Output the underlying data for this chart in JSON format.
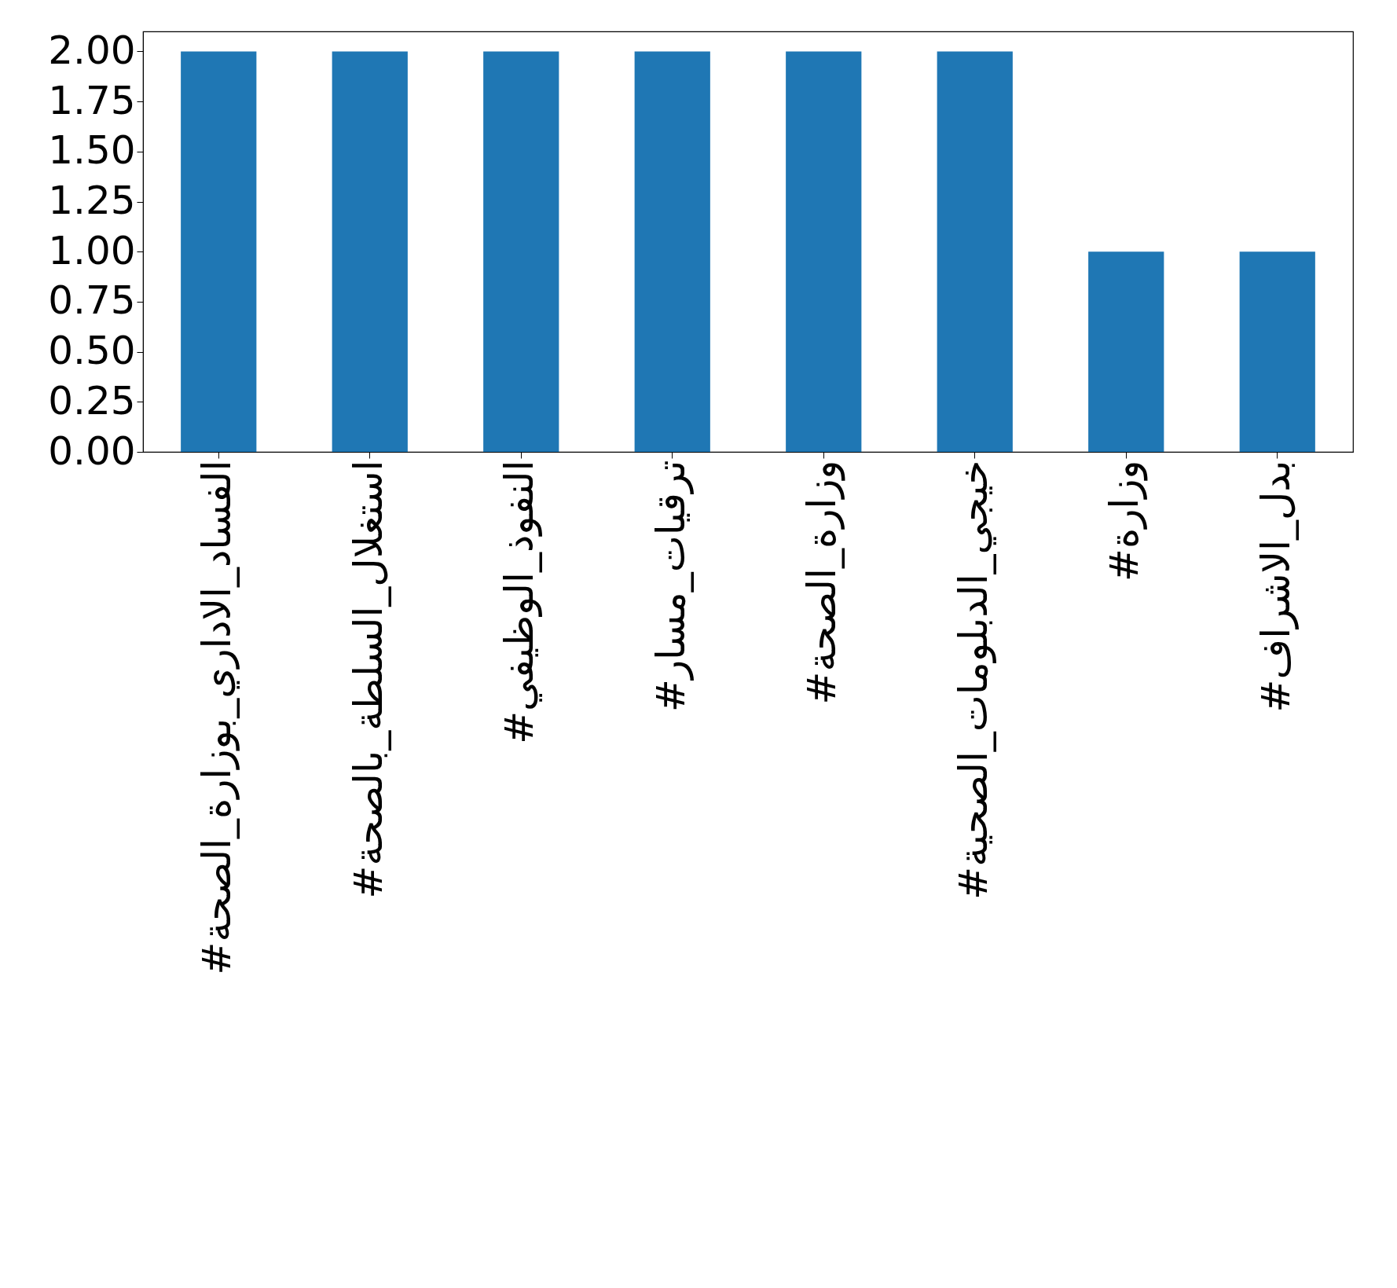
{
  "chart_data": {
    "type": "bar",
    "categories": [
      "#الفساد_الاداري_بوزارة_الصحة",
      "#استغلال_السلطة_بالصحة",
      "#النفوذ_الوظيفي",
      "#ترقيات_مسار",
      "#وزارة_الصحة",
      "#خيجي_الدبلومات_الصحية",
      "#وزارة",
      "#بدل_الاشراف"
    ],
    "values": [
      2,
      2,
      2,
      2,
      2,
      2,
      1,
      1
    ],
    "color": "#1f77b4",
    "ylim": [
      0,
      2.1
    ],
    "yticks": [
      {
        "value": 0,
        "label": "0.00"
      },
      {
        "value": 0.25,
        "label": "0.25"
      },
      {
        "value": 0.5,
        "label": "0.50"
      },
      {
        "value": 0.75,
        "label": "0.75"
      },
      {
        "value": 1,
        "label": "1.00"
      },
      {
        "value": 1.25,
        "label": "1.25"
      },
      {
        "value": 1.5,
        "label": "1.50"
      },
      {
        "value": 1.75,
        "label": "1.75"
      },
      {
        "value": 2,
        "label": "2.00"
      }
    ],
    "grid": false
  }
}
